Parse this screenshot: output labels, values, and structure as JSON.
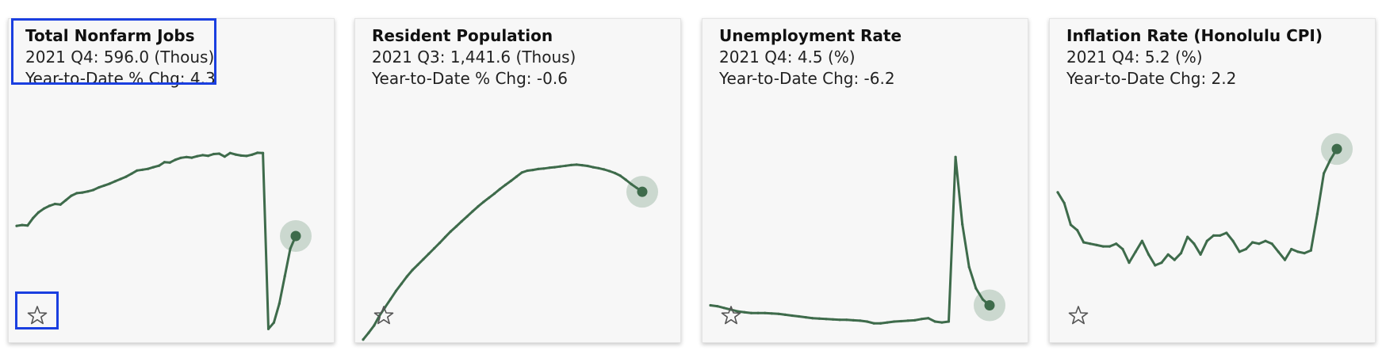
{
  "colors": {
    "line": "#3e6b4b",
    "halo": "#bfd0c4",
    "dot": "#3e6b4b",
    "highlight": "#1a3fe0",
    "star": "#555555"
  },
  "cards": [
    {
      "title": "Total Nonfarm Jobs",
      "line1": "2021 Q4: 596.0 (Thous)",
      "line2": "Year-to-Date % Chg: 4.3",
      "star_icon": "star-outline-icon",
      "series": [
        600.8,
        601.2,
        601.0,
        604.5,
        607.2,
        609.0,
        610.3,
        611.2,
        610.9,
        613.0,
        615.1,
        616.3,
        616.6,
        617.1,
        617.8,
        619.0,
        619.9,
        620.8,
        621.9,
        623.0,
        624.1,
        625.5,
        627.0,
        627.4,
        627.8,
        628.6,
        629.3,
        631.0,
        630.8,
        632.1,
        633.0,
        633.4,
        633.1,
        633.8,
        634.3,
        634.0,
        634.8,
        635.0,
        633.6,
        635.3,
        634.6,
        634.1,
        633.9,
        634.5,
        635.4,
        635.3,
        552.0,
        555.0,
        564.0,
        577.0,
        590.0,
        596.0
      ],
      "chart_range": [
        545,
        650
      ]
    },
    {
      "title": "Resident Population",
      "line1": "2021 Q3: 1,441.6 (Thous)",
      "line2": "Year-to-Date % Chg: -0.6",
      "star_icon": "star-outline-icon",
      "series": [
        1360.3,
        1364.0,
        1368.0,
        1373.5,
        1378.0,
        1382.5,
        1387.0,
        1391.0,
        1395.0,
        1398.5,
        1401.5,
        1404.5,
        1407.5,
        1410.5,
        1413.5,
        1416.7,
        1419.8,
        1422.5,
        1425.3,
        1428.0,
        1430.8,
        1433.5,
        1436.0,
        1438.3,
        1440.6,
        1443.1,
        1445.4,
        1447.6,
        1449.9,
        1452.2,
        1453.2,
        1453.6,
        1454.1,
        1454.4,
        1454.8,
        1455.1,
        1455.5,
        1455.9,
        1456.3,
        1456.5,
        1456.2,
        1455.8,
        1455.1,
        1454.6,
        1453.9,
        1453.0,
        1451.9,
        1450.4,
        1448.2,
        1445.8,
        1443.7,
        1441.6
      ],
      "chart_range": [
        1358,
        1480
      ]
    },
    {
      "title": "Unemployment Rate",
      "line1": "2021 Q4: 4.5 (%)",
      "line2": "Year-to-Date Chg: -6.2",
      "star_icon": "star-outline-icon",
      "series": [
        4.5,
        4.4,
        4.2,
        4.0,
        3.8,
        3.7,
        3.6,
        3.6,
        3.6,
        3.55,
        3.5,
        3.4,
        3.3,
        3.2,
        3.1,
        3.0,
        2.95,
        2.9,
        2.85,
        2.8,
        2.8,
        2.75,
        2.7,
        2.6,
        2.4,
        2.4,
        2.5,
        2.6,
        2.65,
        2.7,
        2.75,
        2.9,
        3.0,
        2.6,
        2.5,
        2.6,
        21.9,
        14.0,
        9.0,
        6.5,
        5.2,
        4.5
      ],
      "chart_range": [
        0,
        26
      ]
    },
    {
      "title": "Inflation Rate (Honolulu CPI)",
      "line1": "2021 Q4: 5.2 (%)",
      "line2": "Year-to-Date Chg: 2.2",
      "star_icon": "star-outline-icon",
      "series": [
        3.6,
        3.2,
        2.4,
        2.2,
        1.75,
        1.7,
        1.65,
        1.6,
        1.6,
        1.7,
        1.5,
        1.0,
        1.4,
        1.8,
        1.3,
        0.9,
        1.0,
        1.3,
        1.1,
        1.35,
        1.95,
        1.7,
        1.3,
        1.8,
        2.0,
        2.0,
        2.1,
        1.8,
        1.4,
        1.5,
        1.75,
        1.7,
        1.8,
        1.7,
        1.4,
        1.1,
        1.5,
        1.4,
        1.35,
        1.45,
        2.8,
        4.3,
        4.8,
        5.2
      ],
      "chart_range": [
        -2,
        6.2
      ]
    }
  ]
}
